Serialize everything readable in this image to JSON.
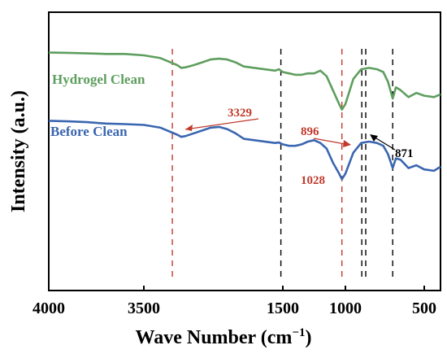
{
  "chart_data": {
    "type": "line",
    "xlabel": "Wave Number (cm",
    "xlabel_sup": "−1",
    "xlabel_close": ")",
    "ylabel": "Intensity (a.u.)",
    "x_ticks": [
      "4000",
      "3500",
      "1500",
      "1000",
      "500"
    ],
    "grid": false,
    "series": [
      {
        "name": "Hydrogel Clean",
        "color": "#5e9e5e",
        "x": [
          4000,
          3900,
          3800,
          3700,
          3600,
          3500,
          3400,
          3300,
          3250,
          3200,
          3100,
          3000,
          2900,
          2800,
          2700,
          2600,
          2500,
          1700,
          1600,
          1500,
          1450,
          1400,
          1350,
          1300,
          1250,
          1200,
          1150,
          1100,
          1050,
          1028,
          1000,
          950,
          900,
          850,
          800,
          760,
          730,
          700,
          680,
          650,
          600,
          550,
          500,
          470,
          450
        ],
        "y": [
          8.55,
          8.54,
          8.52,
          8.5,
          8.5,
          8.45,
          8.35,
          8.1,
          8.0,
          8.02,
          8.1,
          8.2,
          8.3,
          8.33,
          8.3,
          8.2,
          8.05,
          7.9,
          7.95,
          7.85,
          7.8,
          7.75,
          7.75,
          7.8,
          7.8,
          7.9,
          7.7,
          7.2,
          6.7,
          6.5,
          6.7,
          7.6,
          7.95,
          8.0,
          7.95,
          7.85,
          7.5,
          6.9,
          7.3,
          7.2,
          6.95,
          7.1,
          7.0,
          6.95,
          7.05
        ]
      },
      {
        "name": "Before Clean",
        "color": "#3a66b0",
        "x": [
          4000,
          3900,
          3800,
          3700,
          3600,
          3500,
          3400,
          3300,
          3250,
          3200,
          3100,
          3000,
          2900,
          2800,
          2700,
          2600,
          2500,
          1700,
          1600,
          1500,
          1450,
          1400,
          1350,
          1300,
          1250,
          1200,
          1150,
          1100,
          1050,
          1028,
          1000,
          950,
          900,
          850,
          800,
          760,
          730,
          700,
          680,
          650,
          600,
          550,
          500,
          470,
          450
        ],
        "y": [
          6.1,
          6.08,
          6.05,
          6.0,
          5.98,
          5.95,
          5.85,
          5.6,
          5.52,
          5.55,
          5.65,
          5.75,
          5.85,
          5.88,
          5.8,
          5.65,
          5.45,
          5.3,
          5.32,
          5.25,
          5.2,
          5.2,
          5.25,
          5.35,
          5.4,
          5.3,
          5.1,
          4.6,
          4.2,
          4.0,
          4.2,
          4.95,
          5.3,
          5.35,
          5.3,
          5.2,
          4.9,
          4.4,
          4.75,
          4.7,
          4.4,
          4.5,
          4.35,
          4.3,
          4.45
        ]
      }
    ],
    "reference_lines": [
      {
        "x": 3329,
        "color": "#c0392b"
      },
      {
        "x": 1550,
        "color": "#000000"
      },
      {
        "x": 1028,
        "color": "#c0392b"
      },
      {
        "x": 896,
        "color": "#000000"
      },
      {
        "x": 871,
        "color": "#000000"
      },
      {
        "x": 700,
        "color": "#000000"
      }
    ],
    "annotations": [
      {
        "text": "3329",
        "color": "#c0392b"
      },
      {
        "text": "896",
        "color": "#c0392b"
      },
      {
        "text": "871",
        "color": "#000000"
      },
      {
        "text": "1028",
        "color": "#c0392b"
      }
    ],
    "ylim": [
      0,
      10
    ]
  }
}
